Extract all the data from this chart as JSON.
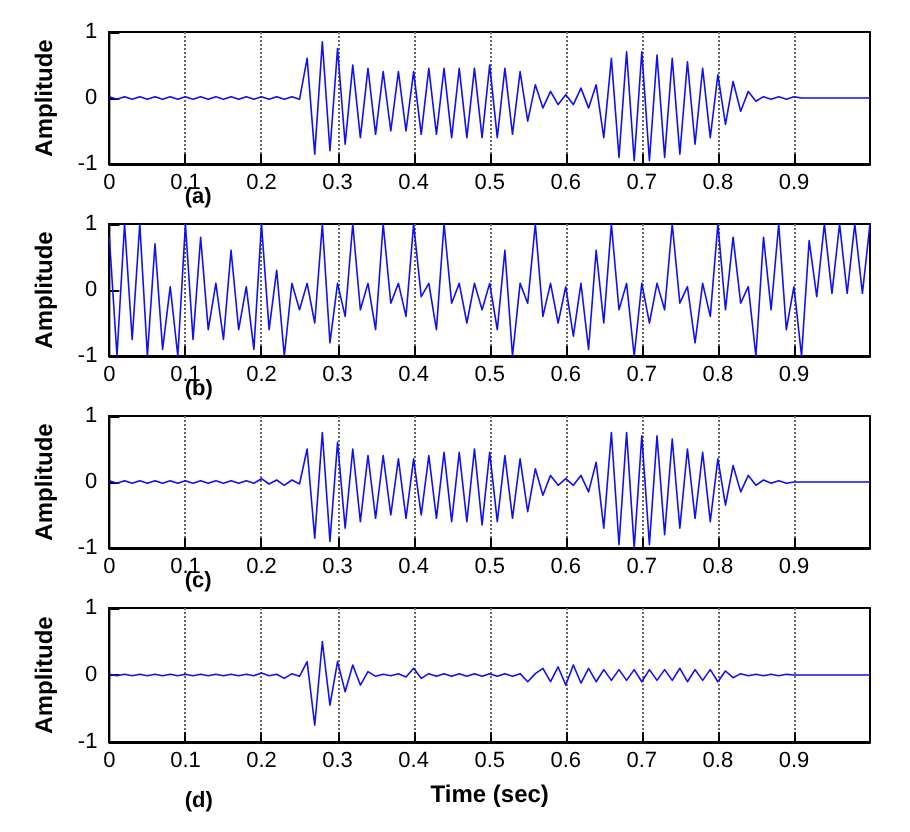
{
  "chart_data": [
    {
      "type": "line",
      "ylabel": "Amplitude",
      "annotations": [
        "(a)"
      ],
      "xlim": [
        0,
        1
      ],
      "ylim": [
        -1,
        1
      ],
      "xticks": [
        0,
        0.1,
        0.2,
        0.3,
        0.4,
        0.5,
        0.6,
        0.7,
        0.8,
        0.9
      ],
      "yticks": [
        -1,
        0,
        1
      ],
      "grid": "x",
      "marker": "none",
      "line_style": "solid",
      "x": [
        0,
        0.01,
        0.02,
        0.03,
        0.04,
        0.05,
        0.06,
        0.07,
        0.08,
        0.09,
        0.1,
        0.11,
        0.12,
        0.13,
        0.14,
        0.15,
        0.16,
        0.17,
        0.18,
        0.19,
        0.2,
        0.21,
        0.22,
        0.23,
        0.24,
        0.25,
        0.26,
        0.27,
        0.28,
        0.29,
        0.3,
        0.31,
        0.32,
        0.33,
        0.34,
        0.35,
        0.36,
        0.37,
        0.38,
        0.39,
        0.4,
        0.41,
        0.42,
        0.43,
        0.44,
        0.45,
        0.46,
        0.47,
        0.48,
        0.49,
        0.5,
        0.51,
        0.52,
        0.53,
        0.54,
        0.55,
        0.56,
        0.57,
        0.58,
        0.59,
        0.6,
        0.61,
        0.62,
        0.63,
        0.64,
        0.65,
        0.66,
        0.67,
        0.68,
        0.69,
        0.7,
        0.71,
        0.72,
        0.73,
        0.74,
        0.75,
        0.76,
        0.77,
        0.78,
        0.79,
        0.8,
        0.81,
        0.82,
        0.83,
        0.84,
        0.85,
        0.86,
        0.87,
        0.88,
        0.89,
        0.9,
        0.91,
        0.92,
        0.93,
        0.94,
        0.95,
        0.96,
        0.97,
        0.98,
        0.99,
        1
      ],
      "series": [
        {
          "color": "#1010f0",
          "values": [
            0.02,
            -0.02,
            0.02,
            -0.02,
            0.02,
            -0.02,
            0.02,
            -0.02,
            0.02,
            -0.02,
            0.02,
            -0.02,
            0.02,
            -0.02,
            0.02,
            -0.02,
            0.02,
            -0.02,
            0.02,
            -0.02,
            0.02,
            -0.02,
            0.02,
            -0.02,
            0.02,
            -0.02,
            0.6,
            -0.85,
            0.85,
            -0.8,
            0.75,
            -0.7,
            0.5,
            -0.6,
            0.45,
            -0.55,
            0.4,
            -0.5,
            0.4,
            -0.5,
            0.4,
            -0.55,
            0.45,
            -0.55,
            0.45,
            -0.6,
            0.45,
            -0.6,
            0.45,
            -0.6,
            0.5,
            -0.6,
            0.45,
            -0.55,
            0.4,
            -0.35,
            0.2,
            -0.15,
            0.1,
            -0.1,
            0.05,
            -0.1,
            0.15,
            -0.15,
            0.2,
            -0.6,
            0.6,
            -0.9,
            0.7,
            -0.95,
            0.7,
            -0.95,
            0.65,
            -0.9,
            0.6,
            -0.85,
            0.55,
            -0.7,
            0.45,
            -0.6,
            0.35,
            -0.4,
            0.25,
            -0.2,
            0.1,
            -0.05,
            0.02,
            -0.02,
            0.02,
            -0.02,
            0.02,
            0,
            0,
            0,
            0,
            0,
            0,
            0,
            0,
            0,
            0
          ]
        }
      ]
    },
    {
      "type": "line",
      "ylabel": "Amplitude",
      "annotations": [
        "(b)"
      ],
      "xlim": [
        0,
        1
      ],
      "ylim": [
        -1,
        1
      ],
      "xticks": [
        0,
        0.1,
        0.2,
        0.3,
        0.4,
        0.5,
        0.6,
        0.7,
        0.8,
        0.9
      ],
      "yticks": [
        -1,
        0,
        1
      ],
      "grid": "x",
      "marker": "none",
      "line_style": "solid",
      "x": [
        0,
        0.01,
        0.02,
        0.03,
        0.04,
        0.05,
        0.06,
        0.07,
        0.08,
        0.09,
        0.1,
        0.11,
        0.12,
        0.13,
        0.14,
        0.15,
        0.16,
        0.17,
        0.18,
        0.19,
        0.2,
        0.21,
        0.22,
        0.23,
        0.24,
        0.25,
        0.26,
        0.27,
        0.28,
        0.29,
        0.3,
        0.31,
        0.32,
        0.33,
        0.34,
        0.35,
        0.36,
        0.37,
        0.38,
        0.39,
        0.4,
        0.41,
        0.42,
        0.43,
        0.44,
        0.45,
        0.46,
        0.47,
        0.48,
        0.49,
        0.5,
        0.51,
        0.52,
        0.53,
        0.54,
        0.55,
        0.56,
        0.57,
        0.58,
        0.59,
        0.6,
        0.61,
        0.62,
        0.63,
        0.64,
        0.65,
        0.66,
        0.67,
        0.68,
        0.69,
        0.7,
        0.71,
        0.72,
        0.73,
        0.74,
        0.75,
        0.76,
        0.77,
        0.78,
        0.79,
        0.8,
        0.81,
        0.82,
        0.83,
        0.84,
        0.85,
        0.86,
        0.87,
        0.88,
        0.89,
        0.9,
        0.91,
        0.92,
        0.93,
        0.94,
        0.95,
        0.96,
        0.97,
        0.98,
        0.99,
        1
      ],
      "series": [
        {
          "color": "#1010f0",
          "values": [
            0.8,
            -1,
            1,
            -0.75,
            1,
            -1,
            0.7,
            -0.9,
            0.05,
            -1,
            1,
            -0.75,
            0.8,
            -0.6,
            0.1,
            -0.75,
            0.6,
            -0.6,
            0.05,
            -0.9,
            1,
            -0.6,
            0.3,
            -1,
            0.1,
            -0.3,
            0.1,
            -0.5,
            1,
            -0.8,
            0.1,
            -0.4,
            1,
            -0.3,
            0.1,
            -0.6,
            1,
            -0.2,
            0.1,
            -0.4,
            1,
            -0.1,
            0.1,
            -0.6,
            1,
            -0.2,
            0.1,
            -0.5,
            0.1,
            -0.3,
            0.1,
            -0.6,
            0.6,
            -1,
            0.1,
            -0.2,
            1,
            -0.4,
            0.1,
            -0.5,
            0.05,
            -0.7,
            0.1,
            -0.9,
            0.6,
            -0.5,
            1,
            -0.3,
            0.1,
            -1,
            0.1,
            -0.5,
            0.1,
            -0.3,
            1,
            -0.2,
            0.05,
            -0.8,
            0.1,
            -0.4,
            1,
            -0.3,
            0.8,
            -0.2,
            0.05,
            -1,
            0.8,
            -0.3,
            1,
            -0.6,
            0.05,
            -1,
            0.75,
            -0.1,
            1,
            -0.05,
            1,
            -0.05,
            1,
            -0.05,
            1
          ]
        }
      ]
    },
    {
      "type": "line",
      "ylabel": "Amplitude",
      "annotations": [
        "(c)"
      ],
      "xlim": [
        0,
        1
      ],
      "ylim": [
        -1,
        1
      ],
      "xticks": [
        0,
        0.1,
        0.2,
        0.3,
        0.4,
        0.5,
        0.6,
        0.7,
        0.8,
        0.9
      ],
      "yticks": [
        -1,
        0,
        1
      ],
      "grid": "x",
      "marker": "none",
      "line_style": "solid",
      "x": [
        0,
        0.01,
        0.02,
        0.03,
        0.04,
        0.05,
        0.06,
        0.07,
        0.08,
        0.09,
        0.1,
        0.11,
        0.12,
        0.13,
        0.14,
        0.15,
        0.16,
        0.17,
        0.18,
        0.19,
        0.2,
        0.21,
        0.22,
        0.23,
        0.24,
        0.25,
        0.26,
        0.27,
        0.28,
        0.29,
        0.3,
        0.31,
        0.32,
        0.33,
        0.34,
        0.35,
        0.36,
        0.37,
        0.38,
        0.39,
        0.4,
        0.41,
        0.42,
        0.43,
        0.44,
        0.45,
        0.46,
        0.47,
        0.48,
        0.49,
        0.5,
        0.51,
        0.52,
        0.53,
        0.54,
        0.55,
        0.56,
        0.57,
        0.58,
        0.59,
        0.6,
        0.61,
        0.62,
        0.63,
        0.64,
        0.65,
        0.66,
        0.67,
        0.68,
        0.69,
        0.7,
        0.71,
        0.72,
        0.73,
        0.74,
        0.75,
        0.76,
        0.77,
        0.78,
        0.79,
        0.8,
        0.81,
        0.82,
        0.83,
        0.84,
        0.85,
        0.86,
        0.87,
        0.88,
        0.89,
        0.9,
        0.91,
        0.92,
        0.93,
        0.94,
        0.95,
        0.96,
        0.97,
        0.98,
        0.99,
        1
      ],
      "series": [
        {
          "color": "#1010f0",
          "values": [
            0.02,
            -0.02,
            0.02,
            -0.02,
            0.02,
            -0.02,
            0.02,
            -0.02,
            0.02,
            -0.02,
            0.02,
            -0.02,
            0.02,
            -0.02,
            0.02,
            -0.02,
            0.02,
            -0.02,
            0.02,
            -0.02,
            0.05,
            -0.03,
            0.03,
            -0.05,
            0.03,
            -0.03,
            0.5,
            -0.85,
            0.75,
            -0.9,
            0.6,
            -0.7,
            0.5,
            -0.6,
            0.4,
            -0.55,
            0.4,
            -0.5,
            0.35,
            -0.55,
            0.35,
            -0.5,
            0.4,
            -0.55,
            0.45,
            -0.6,
            0.45,
            -0.6,
            0.5,
            -0.65,
            0.45,
            -0.6,
            0.4,
            -0.55,
            0.35,
            -0.45,
            0.2,
            -0.2,
            0.1,
            -0.05,
            0.05,
            -0.05,
            0.1,
            -0.15,
            0.3,
            -0.7,
            0.75,
            -0.95,
            0.75,
            -1,
            0.7,
            -0.95,
            0.7,
            -0.8,
            0.65,
            -0.7,
            0.5,
            -0.55,
            0.45,
            -0.6,
            0.35,
            -0.35,
            0.25,
            -0.15,
            0.1,
            -0.05,
            0.03,
            -0.02,
            0.02,
            -0.02,
            0,
            0,
            0,
            0,
            0,
            0,
            0,
            0,
            0,
            0,
            0
          ]
        }
      ]
    },
    {
      "type": "line",
      "xlabel": "Time (sec)",
      "ylabel": "Amplitude",
      "annotations": [
        "(d)"
      ],
      "xlim": [
        0,
        1
      ],
      "ylim": [
        -1,
        1
      ],
      "xticks": [
        0,
        0.1,
        0.2,
        0.3,
        0.4,
        0.5,
        0.6,
        0.7,
        0.8,
        0.9
      ],
      "yticks": [
        -1,
        0,
        1
      ],
      "grid": "x",
      "marker": "none",
      "line_style": "solid",
      "x": [
        0,
        0.01,
        0.02,
        0.03,
        0.04,
        0.05,
        0.06,
        0.07,
        0.08,
        0.09,
        0.1,
        0.11,
        0.12,
        0.13,
        0.14,
        0.15,
        0.16,
        0.17,
        0.18,
        0.19,
        0.2,
        0.21,
        0.22,
        0.23,
        0.24,
        0.25,
        0.26,
        0.27,
        0.28,
        0.29,
        0.3,
        0.31,
        0.32,
        0.33,
        0.34,
        0.35,
        0.36,
        0.37,
        0.38,
        0.39,
        0.4,
        0.41,
        0.42,
        0.43,
        0.44,
        0.45,
        0.46,
        0.47,
        0.48,
        0.49,
        0.5,
        0.51,
        0.52,
        0.53,
        0.54,
        0.55,
        0.56,
        0.57,
        0.58,
        0.59,
        0.6,
        0.61,
        0.62,
        0.63,
        0.64,
        0.65,
        0.66,
        0.67,
        0.68,
        0.69,
        0.7,
        0.71,
        0.72,
        0.73,
        0.74,
        0.75,
        0.76,
        0.77,
        0.78,
        0.79,
        0.8,
        0.81,
        0.82,
        0.83,
        0.84,
        0.85,
        0.86,
        0.87,
        0.88,
        0.89,
        0.9,
        0.91,
        0.92,
        0.93,
        0.94,
        0.95,
        0.96,
        0.97,
        0.98,
        0.99,
        1
      ],
      "series": [
        {
          "color": "#1010f0",
          "values": [
            0.01,
            -0.01,
            0.01,
            -0.01,
            0.01,
            -0.01,
            0.01,
            -0.01,
            0.01,
            -0.01,
            0.01,
            -0.01,
            0.01,
            -0.01,
            0.01,
            -0.01,
            0.01,
            -0.01,
            0.01,
            -0.01,
            0.03,
            -0.01,
            0.01,
            -0.05,
            0.02,
            -0.02,
            0.2,
            -0.75,
            0.5,
            -0.45,
            0.2,
            -0.25,
            0.15,
            -0.15,
            0.05,
            -0.02,
            0.01,
            -0.01,
            0.02,
            -0.03,
            0.1,
            -0.05,
            0.02,
            -0.02,
            0.02,
            -0.02,
            0.02,
            -0.02,
            0.02,
            -0.02,
            0.02,
            -0.02,
            0.02,
            -0.02,
            0.02,
            -0.1,
            0.02,
            0.1,
            -0.1,
            0.12,
            -0.15,
            0.15,
            -0.12,
            0.1,
            -0.1,
            0.08,
            -0.08,
            0.08,
            -0.08,
            0.08,
            -0.1,
            0.08,
            -0.08,
            0.08,
            -0.08,
            0.1,
            -0.1,
            0.08,
            -0.08,
            0.08,
            -0.1,
            0.06,
            -0.04,
            0.02,
            -0.01,
            0.01,
            -0.01,
            0.01,
            -0.01,
            0.01,
            0,
            0,
            0,
            0,
            0,
            0,
            0,
            0,
            0,
            0,
            0
          ]
        }
      ]
    }
  ]
}
